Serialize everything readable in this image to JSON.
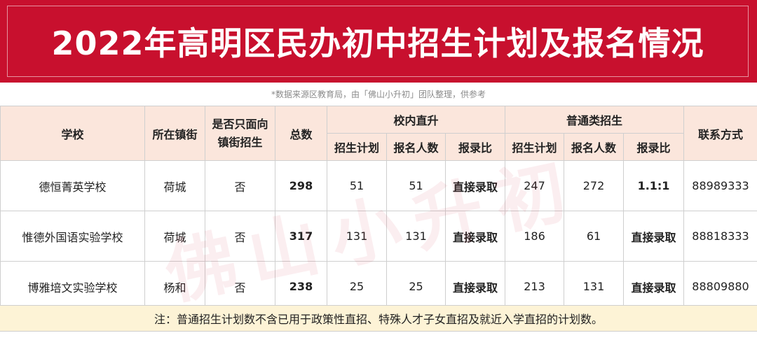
{
  "title": "2022年高明区民办初中招生计划及报名情况",
  "source_note": "*数据来源区教育局，由「佛山小升初」团队整理，供参考",
  "headers": {
    "school": "学校",
    "town": "所在镇街",
    "local_only": "是否只面向镇街招生",
    "total": "总数",
    "internal_group": "校内直升",
    "general_group": "普通类招生",
    "contact": "联系方式",
    "plan": "招生计划",
    "applicants": "报名人数",
    "ratio": "报录比"
  },
  "rows": [
    {
      "school": "德恒菁英学校",
      "town": "荷城",
      "local_only": "否",
      "total": "298",
      "int_plan": "51",
      "int_applicants": "51",
      "int_ratio": "直接录取",
      "gen_plan": "247",
      "gen_applicants": "272",
      "gen_ratio": "1.1:1",
      "contact": "88989333"
    },
    {
      "school": "惟德外国语实验学校",
      "town": "荷城",
      "local_only": "否",
      "total": "317",
      "int_plan": "131",
      "int_applicants": "131",
      "int_ratio": "直接录取",
      "gen_plan": "186",
      "gen_applicants": "61",
      "gen_ratio": "直接录取",
      "contact": "88818333"
    },
    {
      "school": "博雅培文实验学校",
      "town": "杨和",
      "local_only": "否",
      "total": "238",
      "int_plan": "25",
      "int_applicants": "25",
      "int_ratio": "直接录取",
      "gen_plan": "213",
      "gen_applicants": "131",
      "gen_ratio": "直接录取",
      "contact": "88809880"
    }
  ],
  "footnote": "注：普通招生计划数不含已用于政策性直招、特殊人才子女直招及就近入学直招的计划数。",
  "watermark": "佛山小升初",
  "colors": {
    "title_red": "#c8102e",
    "header_bg": "#fbe6dc",
    "note_bg": "#fdf3d6"
  }
}
